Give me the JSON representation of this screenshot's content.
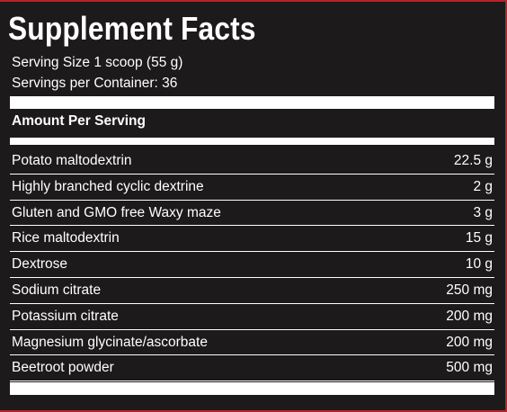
{
  "title": "Supplement Facts",
  "serving_size": "Serving Size 1 scoop (55 g)",
  "servings_per_container": "Servings per Container: 36",
  "amount_header": "Amount Per Serving",
  "ingredients": [
    {
      "name": "Potato maltodextrin",
      "amount": "22.5 g"
    },
    {
      "name": "Highly branched cyclic dextrine",
      "amount": "2 g"
    },
    {
      "name": "Gluten and GMO free Waxy maze",
      "amount": "3 g"
    },
    {
      "name": "Rice maltodextrin",
      "amount": "15 g"
    },
    {
      "name": "Dextrose",
      "amount": "10 g"
    },
    {
      "name": "Sodium citrate",
      "amount": "250 mg"
    },
    {
      "name": "Potassium citrate",
      "amount": "200 mg"
    },
    {
      "name": "Magnesium glycinate/ascorbate",
      "amount": "200 mg"
    },
    {
      "name": "Beetroot powder",
      "amount": "500 mg"
    }
  ],
  "colors": {
    "background": "#1c1a1a",
    "text": "#ffffff",
    "border_accent": "#b3262b"
  }
}
